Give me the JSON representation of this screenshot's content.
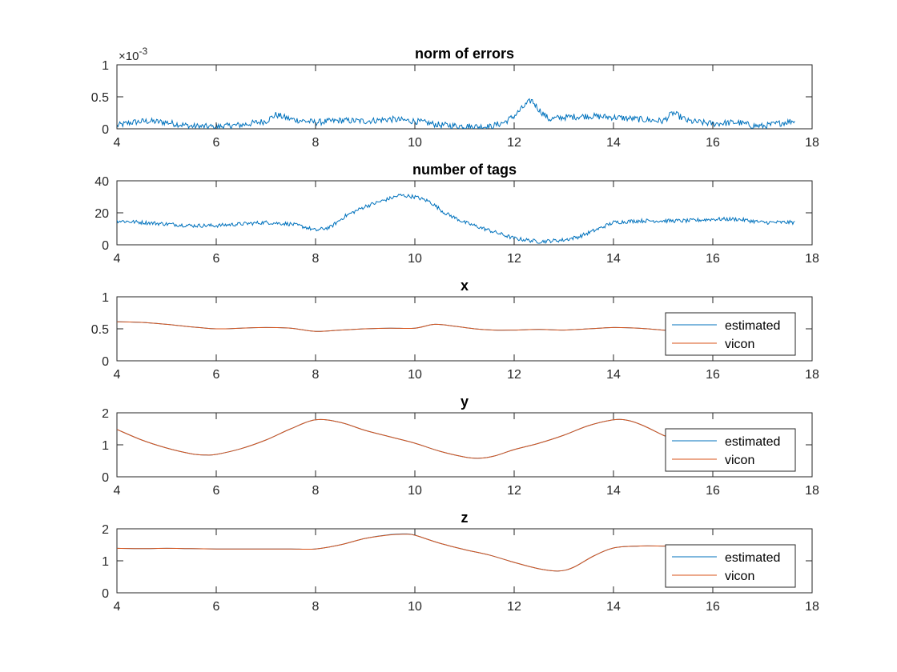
{
  "colors": {
    "estimated": "#0072BD",
    "vicon": "#D95319",
    "axis": "#262626"
  },
  "chart_data": [
    {
      "type": "line",
      "title": "norm of errors",
      "xlim": [
        4,
        18
      ],
      "ylim": [
        0,
        1
      ],
      "xticks": [
        4,
        6,
        8,
        10,
        12,
        14,
        16,
        18
      ],
      "yticks": [
        0,
        0.5,
        1
      ],
      "y_exponent_label": "×10",
      "y_exponent_power": "-3",
      "legend": null,
      "series": [
        {
          "name": "",
          "color": "#0072BD",
          "noise": 0.05,
          "x": [
            4.0,
            4.3,
            4.6,
            5.0,
            5.5,
            6.0,
            6.5,
            7.0,
            7.2,
            7.5,
            8.0,
            8.5,
            9.0,
            9.5,
            10.0,
            10.5,
            11.0,
            11.5,
            11.8,
            12.0,
            12.2,
            12.35,
            12.5,
            12.7,
            13.0,
            13.5,
            14.0,
            14.5,
            15.0,
            15.2,
            15.5,
            16.0,
            16.5,
            16.8,
            17.0,
            17.3,
            17.65
          ],
          "y": [
            0.05,
            0.1,
            0.12,
            0.1,
            0.04,
            0.03,
            0.06,
            0.12,
            0.22,
            0.15,
            0.1,
            0.13,
            0.12,
            0.15,
            0.12,
            0.06,
            0.04,
            0.03,
            0.1,
            0.2,
            0.35,
            0.45,
            0.3,
            0.15,
            0.18,
            0.2,
            0.18,
            0.15,
            0.12,
            0.25,
            0.12,
            0.08,
            0.1,
            0.05,
            0.04,
            0.08,
            0.13
          ]
        }
      ]
    },
    {
      "type": "line",
      "title": "number of tags",
      "xlim": [
        4,
        18
      ],
      "ylim": [
        0,
        40
      ],
      "xticks": [
        4,
        6,
        8,
        10,
        12,
        14,
        16,
        18
      ],
      "yticks": [
        0,
        20,
        40
      ],
      "legend": null,
      "series": [
        {
          "name": "",
          "color": "#0072BD",
          "noise": 1.2,
          "x": [
            4.0,
            4.5,
            5.0,
            5.5,
            6.0,
            6.5,
            7.0,
            7.5,
            7.8,
            8.0,
            8.3,
            8.6,
            9.0,
            9.4,
            9.7,
            10.0,
            10.3,
            10.6,
            11.0,
            11.5,
            12.0,
            12.5,
            13.0,
            13.3,
            13.7,
            14.0,
            14.5,
            15.0,
            15.5,
            16.0,
            16.5,
            17.0,
            17.65
          ],
          "y": [
            15,
            14,
            13,
            12,
            12,
            13,
            14,
            13,
            11,
            9,
            11,
            18,
            24,
            28,
            31,
            30,
            27,
            20,
            14,
            9,
            4,
            2,
            3,
            5,
            10,
            14,
            15,
            15,
            15,
            16,
            16,
            14,
            14
          ]
        }
      ]
    },
    {
      "type": "line",
      "title": "x",
      "xlim": [
        4,
        18
      ],
      "ylim": [
        0,
        1
      ],
      "xticks": [
        4,
        6,
        8,
        10,
        12,
        14,
        16,
        18
      ],
      "yticks": [
        0,
        0.5,
        1
      ],
      "legend": "bottom-right",
      "series": [
        {
          "name": "estimated",
          "color": "#0072BD",
          "noise": 0,
          "x": [
            4.0,
            4.5,
            5.0,
            5.5,
            6.0,
            6.5,
            7.0,
            7.5,
            8.0,
            8.5,
            9.0,
            9.5,
            10.0,
            10.4,
            10.8,
            11.2,
            11.6,
            12.0,
            12.5,
            13.0,
            13.5,
            14.0,
            14.5,
            15.0,
            15.1
          ],
          "y": [
            0.61,
            0.6,
            0.57,
            0.53,
            0.5,
            0.51,
            0.52,
            0.51,
            0.46,
            0.48,
            0.5,
            0.51,
            0.51,
            0.57,
            0.54,
            0.5,
            0.48,
            0.48,
            0.49,
            0.48,
            0.5,
            0.52,
            0.51,
            0.48,
            0.47
          ]
        },
        {
          "name": "vicon",
          "color": "#D95319",
          "noise": 0,
          "x": [
            4.0,
            4.5,
            5.0,
            5.5,
            6.0,
            6.5,
            7.0,
            7.5,
            8.0,
            8.5,
            9.0,
            9.5,
            10.0,
            10.4,
            10.8,
            11.2,
            11.6,
            12.0,
            12.5,
            13.0,
            13.5,
            14.0,
            14.5,
            15.0,
            15.1
          ],
          "y": [
            0.61,
            0.6,
            0.57,
            0.53,
            0.5,
            0.51,
            0.52,
            0.51,
            0.46,
            0.48,
            0.5,
            0.51,
            0.51,
            0.57,
            0.54,
            0.5,
            0.48,
            0.48,
            0.49,
            0.48,
            0.5,
            0.52,
            0.51,
            0.48,
            0.47
          ]
        }
      ]
    },
    {
      "type": "line",
      "title": "y",
      "xlim": [
        4,
        18
      ],
      "ylim": [
        0,
        2
      ],
      "xticks": [
        4,
        6,
        8,
        10,
        12,
        14,
        16,
        18
      ],
      "yticks": [
        0,
        1,
        2
      ],
      "legend": "bottom-right",
      "series": [
        {
          "name": "estimated",
          "color": "#0072BD",
          "noise": 0,
          "x": [
            4.0,
            4.5,
            5.0,
            5.5,
            5.8,
            6.0,
            6.5,
            7.0,
            7.5,
            8.0,
            8.5,
            9.0,
            9.5,
            10.0,
            10.5,
            11.0,
            11.3,
            11.6,
            12.0,
            12.5,
            13.0,
            13.5,
            14.0,
            14.3,
            14.6,
            15.0,
            15.1
          ],
          "y": [
            1.48,
            1.15,
            0.9,
            0.72,
            0.68,
            0.7,
            0.88,
            1.15,
            1.5,
            1.78,
            1.7,
            1.45,
            1.25,
            1.05,
            0.8,
            0.62,
            0.58,
            0.65,
            0.85,
            1.05,
            1.3,
            1.6,
            1.78,
            1.76,
            1.6,
            1.3,
            1.25
          ]
        },
        {
          "name": "vicon",
          "color": "#D95319",
          "noise": 0,
          "x": [
            4.0,
            4.5,
            5.0,
            5.5,
            5.8,
            6.0,
            6.5,
            7.0,
            7.5,
            8.0,
            8.5,
            9.0,
            9.5,
            10.0,
            10.5,
            11.0,
            11.3,
            11.6,
            12.0,
            12.5,
            13.0,
            13.5,
            14.0,
            14.3,
            14.6,
            15.0,
            15.1
          ],
          "y": [
            1.48,
            1.15,
            0.9,
            0.72,
            0.68,
            0.7,
            0.88,
            1.15,
            1.5,
            1.78,
            1.7,
            1.45,
            1.25,
            1.05,
            0.8,
            0.62,
            0.58,
            0.65,
            0.85,
            1.05,
            1.3,
            1.6,
            1.78,
            1.76,
            1.6,
            1.3,
            1.25
          ]
        }
      ]
    },
    {
      "type": "line",
      "title": "z",
      "xlim": [
        4,
        18
      ],
      "ylim": [
        0,
        2
      ],
      "xticks": [
        4,
        6,
        8,
        10,
        12,
        14,
        16,
        18
      ],
      "yticks": [
        0,
        1,
        2
      ],
      "legend": "bottom-right",
      "series": [
        {
          "name": "estimated",
          "color": "#0072BD",
          "noise": 0,
          "x": [
            4.0,
            4.5,
            5.0,
            5.5,
            6.0,
            6.5,
            7.0,
            7.5,
            8.0,
            8.5,
            9.0,
            9.5,
            9.8,
            10.0,
            10.5,
            11.0,
            11.5,
            12.0,
            12.5,
            12.9,
            13.2,
            13.6,
            14.0,
            14.5,
            15.0,
            15.1
          ],
          "y": [
            1.39,
            1.38,
            1.39,
            1.38,
            1.37,
            1.37,
            1.37,
            1.37,
            1.37,
            1.5,
            1.7,
            1.82,
            1.84,
            1.8,
            1.55,
            1.35,
            1.18,
            0.95,
            0.75,
            0.68,
            0.8,
            1.15,
            1.4,
            1.46,
            1.46,
            1.46
          ]
        },
        {
          "name": "vicon",
          "color": "#D95319",
          "noise": 0,
          "x": [
            4.0,
            4.5,
            5.0,
            5.5,
            6.0,
            6.5,
            7.0,
            7.5,
            8.0,
            8.5,
            9.0,
            9.5,
            9.8,
            10.0,
            10.5,
            11.0,
            11.5,
            12.0,
            12.5,
            12.9,
            13.2,
            13.6,
            14.0,
            14.5,
            15.0,
            15.1
          ],
          "y": [
            1.39,
            1.38,
            1.39,
            1.38,
            1.37,
            1.37,
            1.37,
            1.37,
            1.37,
            1.5,
            1.7,
            1.81,
            1.83,
            1.8,
            1.55,
            1.35,
            1.18,
            0.95,
            0.75,
            0.68,
            0.8,
            1.15,
            1.4,
            1.46,
            1.46,
            1.46
          ]
        }
      ]
    }
  ]
}
